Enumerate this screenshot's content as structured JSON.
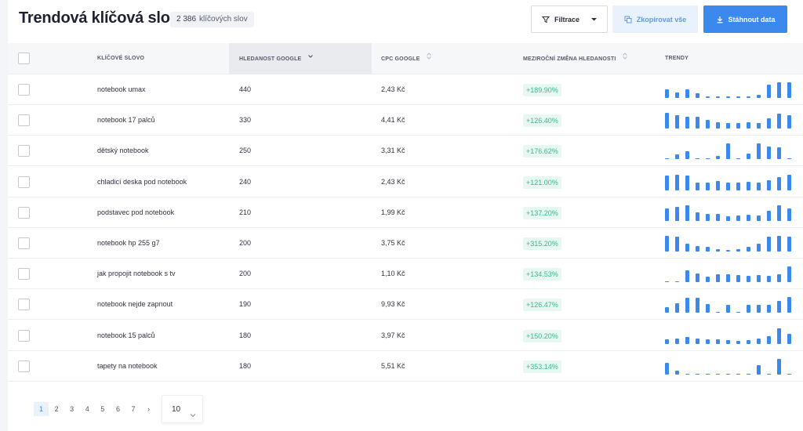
{
  "header": {
    "title": "Trendová klíčová slova",
    "count_number": "2 386",
    "count_label": "klíčových slov",
    "filter_label": "Filtrace",
    "copy_label": "Zkopírovat vše",
    "download_label": "Stáhnout data"
  },
  "table": {
    "columns": {
      "keyword": "KLÍČOVÉ SLOVO",
      "volume": "HLEDANOST GOOGLE",
      "cpc": "CPC GOOGLE",
      "change": "MEZIROČNÍ ZMĚNA HLEDANOSTI",
      "trend": "TRENDY"
    },
    "rows": [
      {
        "keyword": "notebook umax",
        "volume": "440",
        "cpc": "2,43 Kč",
        "change": "+189.90%",
        "trend": [
          0.55,
          0.35,
          0.55,
          0.3,
          0.1,
          0.1,
          0.1,
          0.1,
          0.1,
          0.2,
          0.85,
          1,
          1
        ]
      },
      {
        "keyword": "notebook 17 palců",
        "volume": "330",
        "cpc": "4,41 Kč",
        "change": "+126.40%",
        "trend": [
          1,
          0.85,
          0.75,
          0.75,
          0.55,
          0.4,
          0.35,
          0.35,
          0.4,
          0.35,
          0.65,
          0.95,
          0.85
        ]
      },
      {
        "keyword": "dětský notebook",
        "volume": "250",
        "cpc": "3,31 Kč",
        "change": "+176.62%",
        "trend": [
          0.05,
          0.3,
          0.5,
          0.05,
          0.05,
          0.2,
          1,
          0.05,
          0.35,
          1,
          0.8,
          0.75,
          0.05
        ]
      },
      {
        "keyword": "chladicí deska pod notebook",
        "volume": "240",
        "cpc": "2,43 Kč",
        "change": "+121.00%",
        "trend": [
          0.95,
          1,
          0.95,
          0.5,
          0.5,
          0.6,
          0.5,
          0.5,
          0.55,
          0.5,
          0.65,
          0.85,
          1
        ]
      },
      {
        "keyword": "podstavec pod notebook",
        "volume": "210",
        "cpc": "1,99 Kč",
        "change": "+137.20%",
        "trend": [
          0.8,
          0.9,
          1,
          0.55,
          0.45,
          0.45,
          0.3,
          0.35,
          0.4,
          0.35,
          0.65,
          1,
          0.8
        ]
      },
      {
        "keyword": "notebook hp 255 g7",
        "volume": "200",
        "cpc": "3,75 Kč",
        "change": "+315.20%",
        "trend": [
          1,
          0.95,
          0.5,
          0.35,
          0.3,
          0.15,
          0.1,
          0.15,
          0.3,
          0.5,
          0.95,
          1,
          0.95
        ]
      },
      {
        "keyword": "jak propojit notebook s tv",
        "volume": "200",
        "cpc": "1,10 Kč",
        "change": "+134.53%",
        "trend": [
          0.05,
          0.05,
          0.75,
          0.55,
          0.35,
          0.5,
          0.5,
          0.45,
          0.4,
          0.45,
          0.4,
          0.5,
          1
        ]
      },
      {
        "keyword": "notebook nejde zapnout",
        "volume": "190",
        "cpc": "9,93 Kč",
        "change": "+126.47%",
        "trend": [
          0.35,
          0.6,
          0.95,
          0.95,
          0.55,
          0.05,
          0.5,
          0.05,
          0.5,
          0.5,
          0.5,
          0.75,
          1
        ]
      },
      {
        "keyword": "notebook 15 palců",
        "volume": "180",
        "cpc": "3,97 Kč",
        "change": "+150.20%",
        "trend": [
          0.3,
          0.35,
          0.45,
          0.35,
          0.3,
          0.3,
          0.25,
          0.2,
          0.25,
          0.35,
          0.5,
          1,
          0.65
        ]
      },
      {
        "keyword": "tapety na notebook",
        "volume": "180",
        "cpc": "5,51 Kč",
        "change": "+353.14%",
        "trend": [
          0.75,
          0.25,
          0.05,
          0.05,
          0.05,
          0.05,
          0.05,
          0.05,
          0.05,
          0.6,
          0.05,
          1,
          0.05
        ]
      }
    ]
  },
  "pagination": {
    "pages": [
      "1",
      "2",
      "3",
      "4",
      "5",
      "6",
      "7"
    ],
    "next": "›",
    "per_page": "10"
  },
  "colors": {
    "accent": "#3c89ee",
    "positive": "#3bb98a"
  }
}
